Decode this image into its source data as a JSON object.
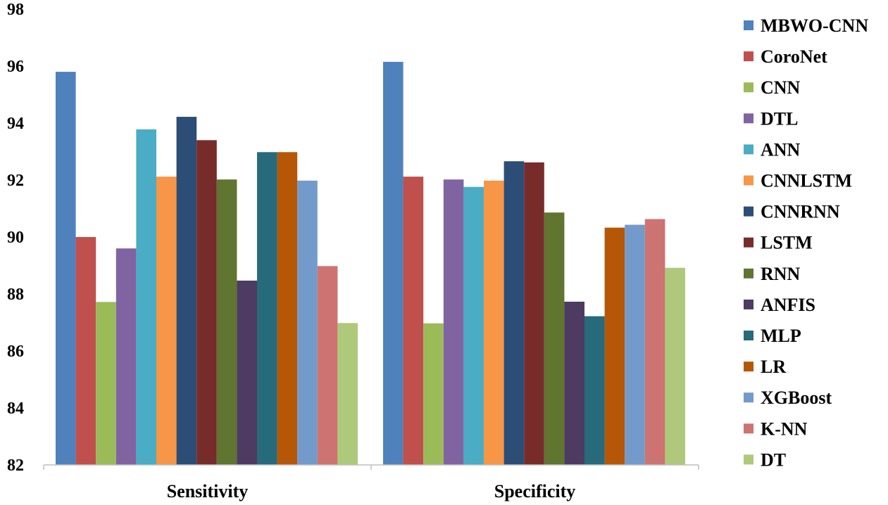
{
  "chart_data": {
    "type": "bar",
    "title": "",
    "xlabel": "",
    "ylabel": "",
    "ylim": [
      82,
      98
    ],
    "yticks": [
      82,
      84,
      86,
      88,
      90,
      92,
      94,
      96,
      98
    ],
    "grid": false,
    "legend_position": "right",
    "categories": [
      "Sensitivity",
      "Specificity"
    ],
    "series": [
      {
        "name": "MBWO-CNN",
        "color": "#4F81BD",
        "values": [
          95.8,
          96.15
        ]
      },
      {
        "name": "CoroNet",
        "color": "#C0504D",
        "values": [
          90.0,
          92.12
        ]
      },
      {
        "name": "CNN",
        "color": "#9BBB59",
        "values": [
          87.72,
          86.97
        ]
      },
      {
        "name": "DTL",
        "color": "#8064A2",
        "values": [
          89.6,
          92.02
        ]
      },
      {
        "name": "ANN",
        "color": "#4BACC6",
        "values": [
          93.78,
          91.76
        ]
      },
      {
        "name": "CNNLSTM",
        "color": "#F79646",
        "values": [
          92.12,
          91.98
        ]
      },
      {
        "name": "CNNRNN",
        "color": "#2C4D75",
        "values": [
          94.22,
          92.66
        ]
      },
      {
        "name": "LSTM",
        "color": "#772C2A",
        "values": [
          93.4,
          92.62
        ]
      },
      {
        "name": "RNN",
        "color": "#5F7530",
        "values": [
          92.02,
          90.86
        ]
      },
      {
        "name": "ANFIS",
        "color": "#4D3B62",
        "values": [
          88.47,
          87.73
        ]
      },
      {
        "name": "MLP",
        "color": "#276A7C",
        "values": [
          92.98,
          87.22
        ]
      },
      {
        "name": "LR",
        "color": "#B65708",
        "values": [
          92.98,
          90.33
        ]
      },
      {
        "name": "XGBoost",
        "color": "#729ACA",
        "values": [
          91.98,
          90.43
        ]
      },
      {
        "name": "K-NN",
        "color": "#CD7371",
        "values": [
          88.98,
          90.63
        ]
      },
      {
        "name": "DT",
        "color": "#AFC97A",
        "values": [
          86.98,
          88.92
        ]
      }
    ]
  }
}
